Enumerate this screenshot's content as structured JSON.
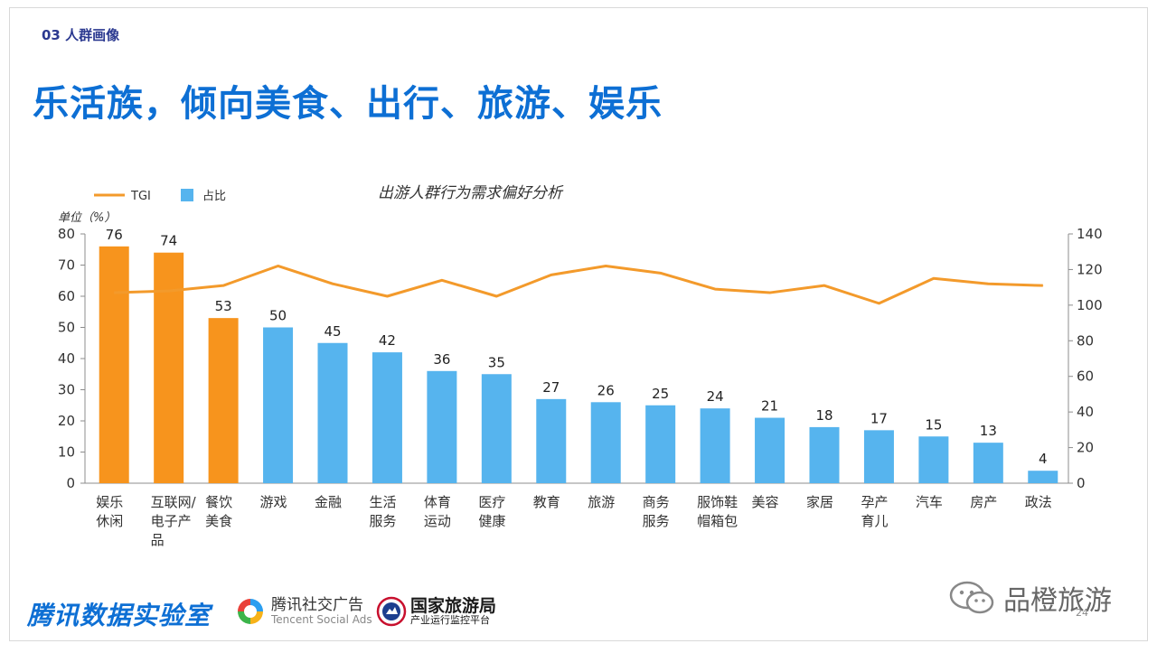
{
  "header": {
    "section": "03 人群画像",
    "headline": "乐活族，倾向美食、出行、旅游、娱乐"
  },
  "chart_data": {
    "type": "bar",
    "title": "出游人群行为需求偏好分析",
    "unit_label": "单位（%）",
    "categories": [
      [
        "娱乐",
        "休闲"
      ],
      [
        "互联网/",
        "电子产",
        "品"
      ],
      [
        "餐饮",
        "美食"
      ],
      [
        "游戏"
      ],
      [
        "金融"
      ],
      [
        "生活",
        "服务"
      ],
      [
        "体育",
        "运动"
      ],
      [
        "医疗",
        "健康"
      ],
      [
        "教育"
      ],
      [
        "旅游"
      ],
      [
        "商务",
        "服务"
      ],
      [
        "服饰鞋",
        "帽箱包"
      ],
      [
        "美容"
      ],
      [
        "家居"
      ],
      [
        "孕产",
        "育儿"
      ],
      [
        "汽车"
      ],
      [
        "房产"
      ],
      [
        "政法"
      ]
    ],
    "series": [
      {
        "name": "占比",
        "type": "bar",
        "axis": "left",
        "values": [
          76,
          74,
          53,
          50,
          45,
          42,
          36,
          35,
          27,
          26,
          25,
          24,
          21,
          18,
          17,
          15,
          13,
          4
        ],
        "highlight_count": 3,
        "highlight_color": "#f7941d",
        "color": "#56b4ee"
      },
      {
        "name": "TGI",
        "type": "line",
        "axis": "right",
        "values": [
          107,
          108,
          111,
          122,
          112,
          105,
          114,
          105,
          117,
          122,
          118,
          109,
          107,
          111,
          101,
          115,
          112,
          111
        ],
        "color": "#f39a2b"
      }
    ],
    "ylim_left": [
      0,
      80
    ],
    "yticks_left": [
      0,
      10,
      20,
      30,
      40,
      50,
      60,
      70,
      80
    ],
    "ylim_right": [
      0,
      140
    ],
    "yticks_right": [
      0,
      20,
      40,
      60,
      80,
      100,
      120,
      140
    ],
    "legend": [
      {
        "label": "TGI",
        "kind": "line",
        "color": "#f39a2b"
      },
      {
        "label": "占比",
        "kind": "bar",
        "color": "#56b4ee"
      }
    ],
    "legend_position": "top-left"
  },
  "footer": {
    "lab": "腾讯数据实验室",
    "ads_cn": "腾讯社交广告",
    "ads_en": "Tencent Social Ads",
    "cnta_cn": "国家旅游局",
    "cnta_sub": "产业运行监控平台",
    "wechat_name": "品橙旅游",
    "page_number": "24"
  }
}
